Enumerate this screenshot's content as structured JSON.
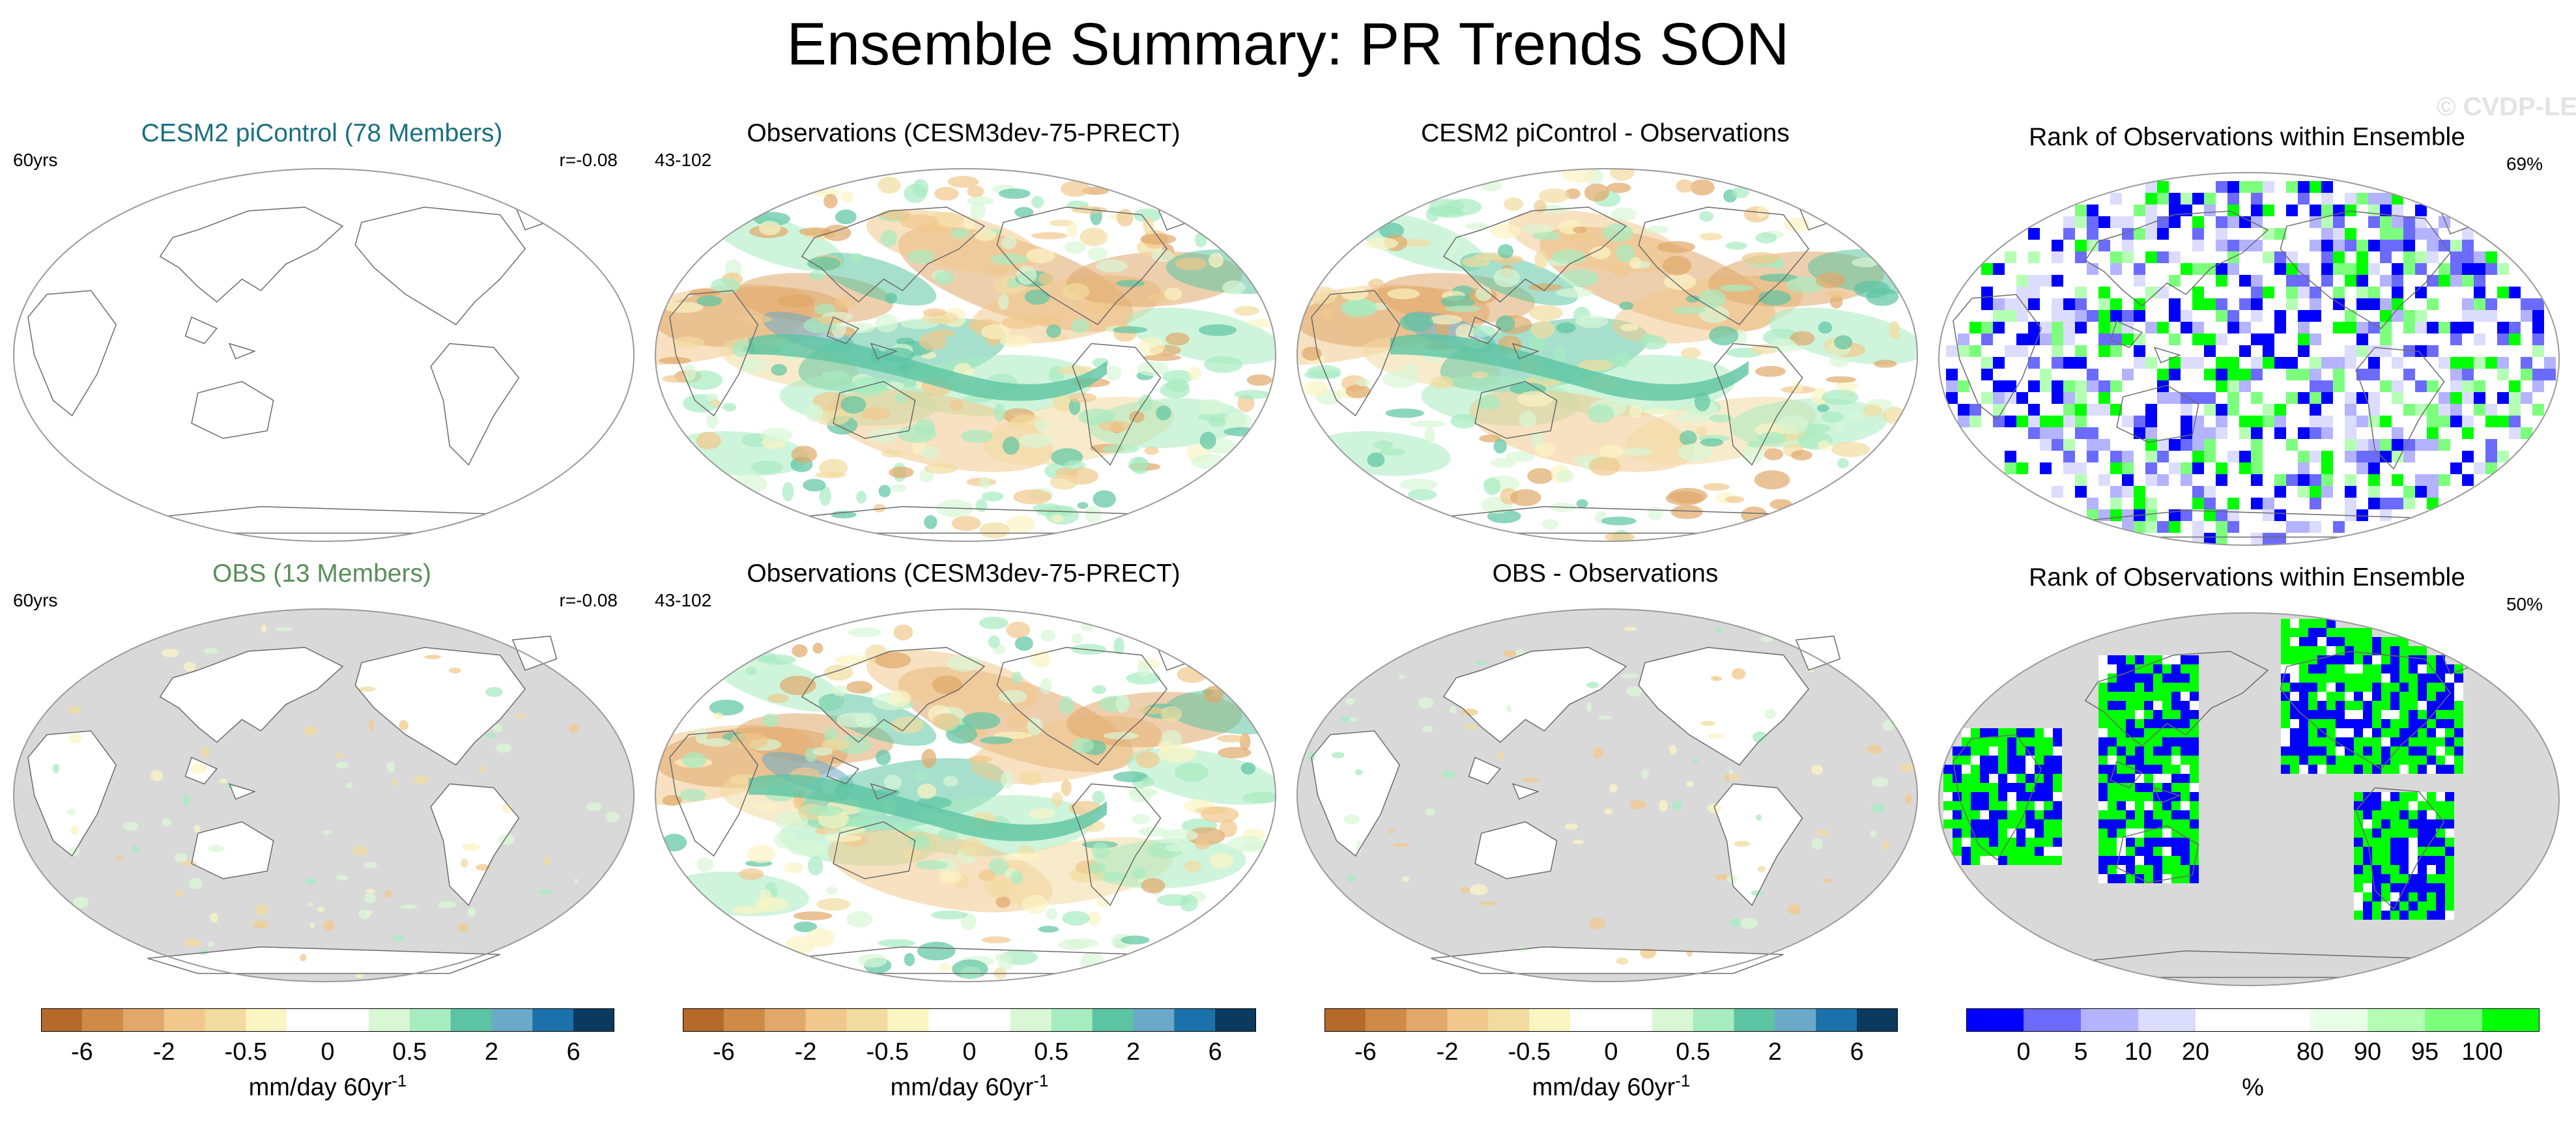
{
  "title": "Ensemble Summary: PR Trends SON",
  "watermark": "© CVDP-LE",
  "colors": {
    "model_title": "#1a7080",
    "obs_title": "#5a8f5a",
    "land_gray": "#d9d9d9",
    "trend_scale": [
      "#b5692b",
      "#cf8a47",
      "#e0a86a",
      "#f1c88c",
      "#f2dba0",
      "#fbf4c3",
      "#ffffff",
      "#ffffff",
      "#d9f7d5",
      "#a7ebc0",
      "#5cc4a3",
      "#6aa9c7",
      "#1b72aa",
      "#0c3a5e"
    ],
    "rank_scale": [
      "#0000ff",
      "#6b6bff",
      "#b3b3ff",
      "#dcdcff",
      "#ffffff",
      "#ffffff",
      "#e8ffe8",
      "#b5ffb5",
      "#7cff7c",
      "#00ff00"
    ]
  },
  "panels": [
    {
      "title": "CESM2 piControl (78 Members)",
      "left_label": "60yrs",
      "right_label": "r=-0.08",
      "kind": "model"
    },
    {
      "title": "Observations (CESM3dev-75-PRECT)",
      "left_label": "43-102",
      "right_label": "",
      "kind": "obs"
    },
    {
      "title": "CESM2 piControl - Observations",
      "left_label": "",
      "right_label": "",
      "kind": "diff"
    },
    {
      "title": "Rank of Observations within Ensemble",
      "left_label": "",
      "right_label": "69%",
      "kind": "rank"
    },
    {
      "title": "OBS (13 Members)",
      "left_label": "60yrs",
      "right_label": "r=-0.08",
      "kind": "obsmodel"
    },
    {
      "title": "Observations (CESM3dev-75-PRECT)",
      "left_label": "43-102",
      "right_label": "",
      "kind": "obs"
    },
    {
      "title": "OBS - Observations",
      "left_label": "",
      "right_label": "",
      "kind": "obsdiff"
    },
    {
      "title": "Rank of Observations within Ensemble",
      "left_label": "",
      "right_label": "50%",
      "kind": "ranksparse"
    }
  ],
  "colorbars": [
    {
      "ticks": [
        "-6",
        "-2",
        "-0.5",
        "0",
        "0.5",
        "2",
        "6"
      ],
      "label": "mm/day 60yr",
      "label_sup": "-1"
    },
    {
      "ticks": [
        "-6",
        "-2",
        "-0.5",
        "0",
        "0.5",
        "2",
        "6"
      ],
      "label": "mm/day 60yr",
      "label_sup": "-1"
    },
    {
      "ticks": [
        "-6",
        "-2",
        "-0.5",
        "0",
        "0.5",
        "2",
        "6"
      ],
      "label": "mm/day 60yr",
      "label_sup": "-1"
    },
    {
      "ticks": [
        "0",
        "5",
        "10",
        "20",
        "80",
        "90",
        "95",
        "100"
      ],
      "label": "%",
      "label_sup": ""
    }
  ],
  "chart_data": {
    "type": "heatmap",
    "title": "Ensemble Summary: PR Trends SON",
    "projection": "Robinson (Pacific-centered)",
    "units": "mm/day 60yr-1",
    "trend_contour_levels": [
      -6,
      -4,
      -2,
      -1,
      -0.5,
      -0.25,
      0,
      0.25,
      0.5,
      1,
      2,
      4,
      6
    ],
    "trend_ticks": [
      -6,
      -2,
      -0.5,
      0,
      0.5,
      2,
      6
    ],
    "rank_levels": [
      0,
      5,
      10,
      20,
      80,
      90,
      95,
      100
    ],
    "rank_units": "%",
    "panels": [
      {
        "title": "CESM2 piControl (78 Members)",
        "period": "60yrs",
        "pattern_corr": -0.08
      },
      {
        "title": "Observations (CESM3dev-75-PRECT)",
        "years": "43-102"
      },
      {
        "title": "CESM2 piControl - Observations"
      },
      {
        "title": "Rank of Observations within Ensemble",
        "percent_within_ensemble": 69
      },
      {
        "title": "OBS (13 Members)",
        "period": "60yrs",
        "pattern_corr": -0.08
      },
      {
        "title": "Observations (CESM3dev-75-PRECT)",
        "years": "43-102"
      },
      {
        "title": "OBS - Observations"
      },
      {
        "title": "Rank of Observations within Ensemble",
        "percent_within_ensemble": 50
      }
    ]
  }
}
